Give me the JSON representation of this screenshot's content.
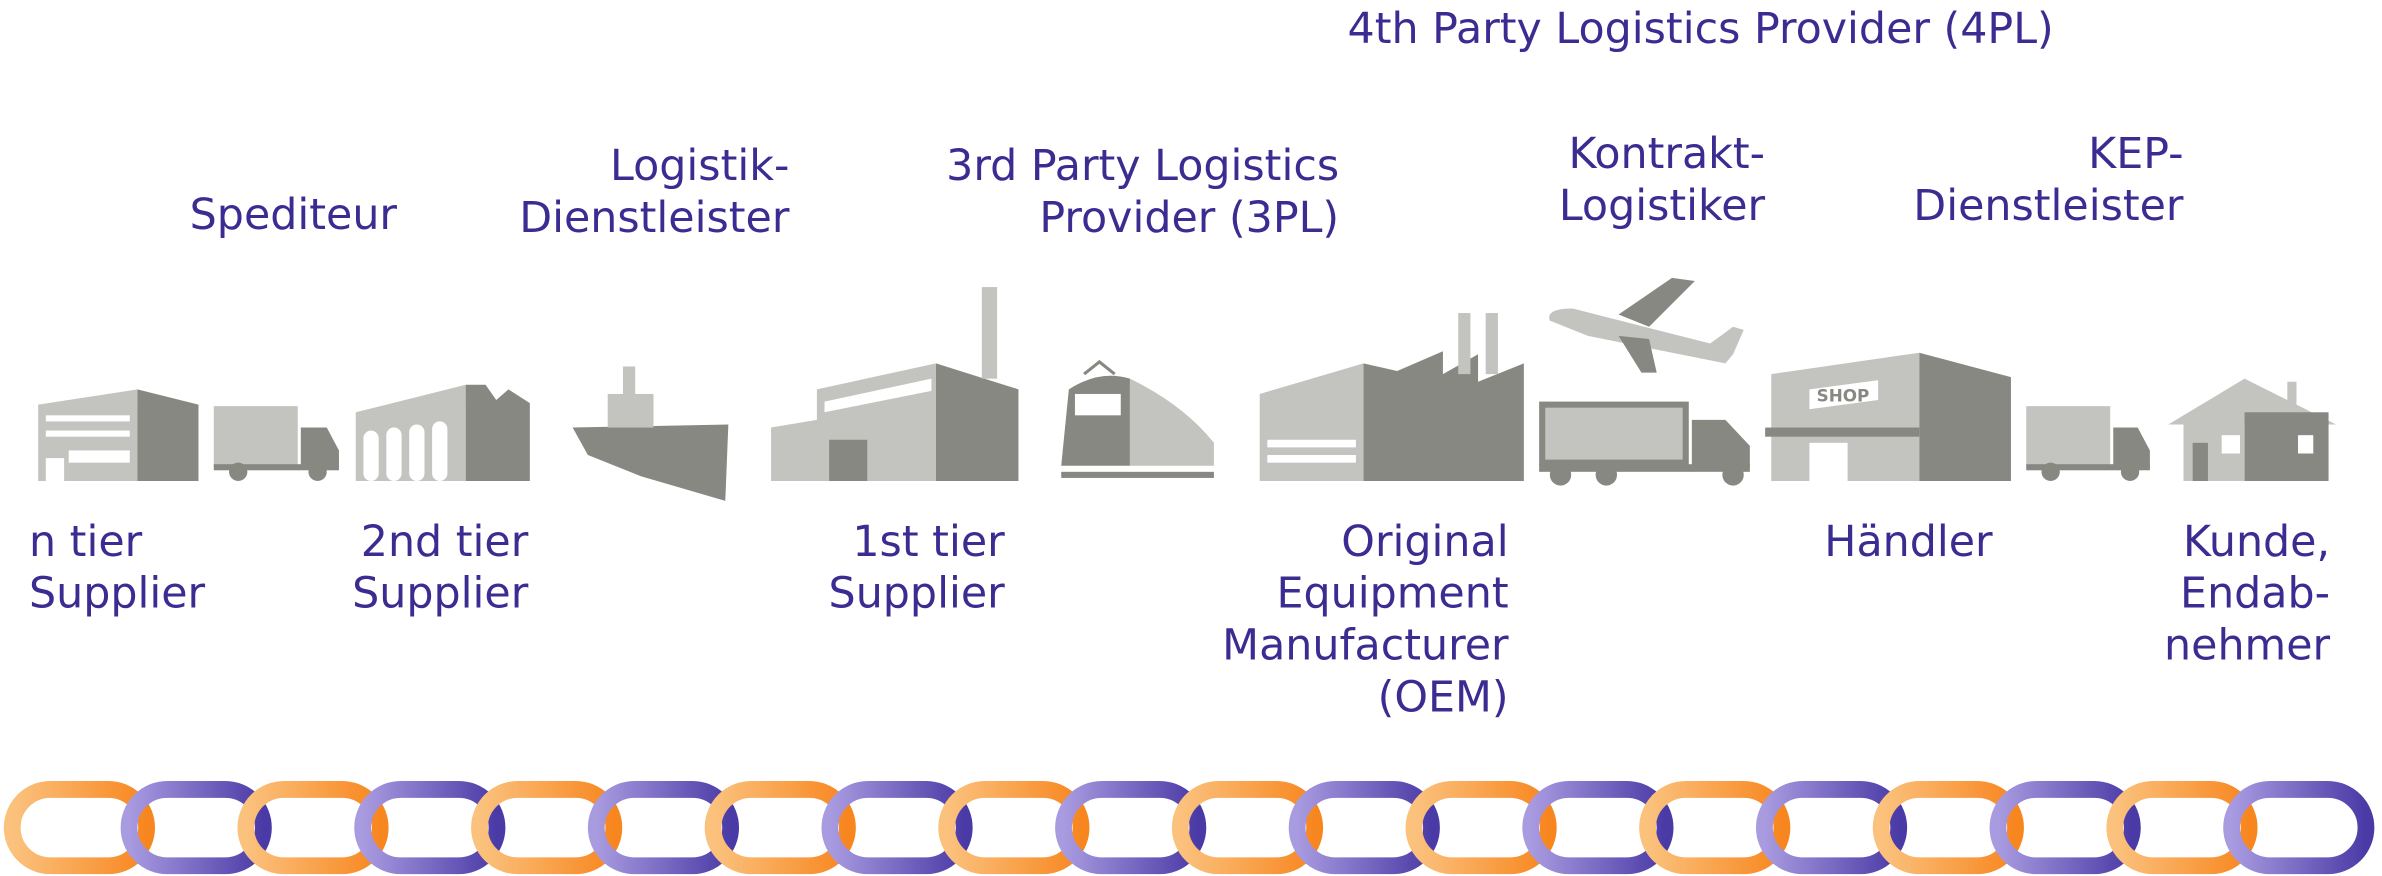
{
  "title": "4th Party Logistics Provider (4PL)",
  "providers": [
    {
      "lines": [
        "Spediteur"
      ]
    },
    {
      "lines": [
        "Logistik-",
        "Dienstleister"
      ]
    },
    {
      "lines": [
        "3rd Party Logistics",
        "Provider (3PL)"
      ]
    },
    {
      "lines": [
        "Kontrakt-",
        "Logistiker"
      ]
    },
    {
      "lines": [
        "KEP-",
        "Dienstleister"
      ]
    }
  ],
  "stages": [
    {
      "lines": [
        "n tier",
        "Supplier"
      ]
    },
    {
      "lines": [
        "2nd tier",
        "Supplier"
      ]
    },
    {
      "lines": [
        "1st tier",
        "Supplier"
      ]
    },
    {
      "lines": [
        "Original",
        "Equipment",
        "Manufacturer",
        "(OEM)"
      ]
    },
    {
      "lines": [
        "Händler"
      ]
    },
    {
      "lines": [
        "Kunde,",
        "Endab-",
        "nehmer"
      ]
    }
  ]
}
